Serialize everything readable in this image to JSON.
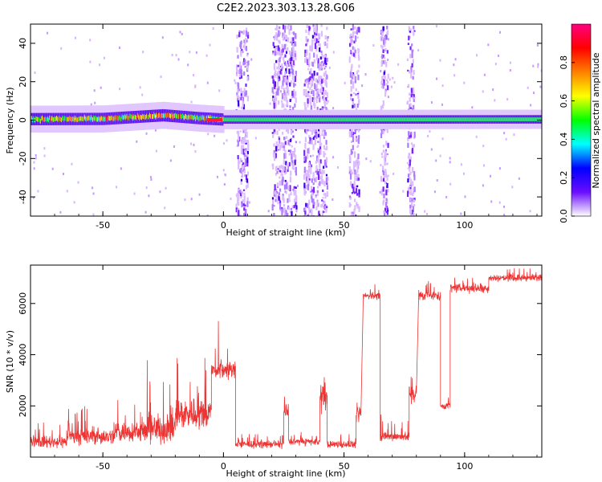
{
  "chart_data": [
    {
      "type": "heatmap",
      "title": "C2E2.2023.303.13.28.G06",
      "xlabel": "Height of straight line (km)",
      "ylabel": "Frequency (Hz)",
      "xlim": [
        -80,
        132
      ],
      "ylim": [
        -50,
        50
      ],
      "xticks": [
        -50,
        0,
        50,
        100
      ],
      "yticks": [
        -40,
        -20,
        0,
        20,
        40
      ],
      "colorbar": {
        "label": "Normalized spectral amplitude",
        "range": [
          0,
          1
        ],
        "ticks": [
          "0.0",
          "0.2",
          "0.4",
          "0.6",
          "0.8"
        ],
        "colors": [
          "#ffffff",
          "#6a0dff",
          "#0000ff",
          "#00ffff",
          "#00ff00",
          "#ffff00",
          "#ff8000",
          "#ff0000",
          "#ff0080"
        ]
      },
      "main_line": [
        {
          "x": -80,
          "y": 0.5
        },
        {
          "x": -50,
          "y": 0.6
        },
        {
          "x": -25,
          "y": 2.5
        },
        {
          "x": -10,
          "y": 1.0
        },
        {
          "x": 0,
          "y": 0.3
        },
        {
          "x": 50,
          "y": 0.3
        },
        {
          "x": 132,
          "y": 0.4
        }
      ],
      "noise_bands": [
        {
          "x_from": 5,
          "x_to": 10
        },
        {
          "x_from": 20,
          "x_to": 30
        },
        {
          "x_from": 33,
          "x_to": 43
        },
        {
          "x_from": 52,
          "x_to": 56
        },
        {
          "x_from": 65,
          "x_to": 68
        },
        {
          "x_from": 76,
          "x_to": 79
        }
      ]
    },
    {
      "type": "line",
      "title": "",
      "xlabel": "Height of straight line (km)",
      "ylabel": "SNR (10 * v/v)",
      "xlim": [
        -80,
        132
      ],
      "ylim": [
        0,
        7500
      ],
      "xticks": [
        -50,
        0,
        50,
        100
      ],
      "yticks": [
        2000,
        4000,
        6000
      ],
      "series": [
        {
          "color": "#ee3333",
          "segments": [
            {
              "x_from": -80,
              "x_to": -65,
              "base": 600,
              "noise": 350,
              "spike": 1400
            },
            {
              "x_from": -65,
              "x_to": -45,
              "base": 800,
              "noise": 450,
              "spike": 2000
            },
            {
              "x_from": -45,
              "x_to": -32,
              "base": 1000,
              "noise": 600,
              "spike": 2600
            },
            {
              "x_from": -32,
              "x_to": -20,
              "base": 1100,
              "noise": 800,
              "spike": 3800
            },
            {
              "x_from": -20,
              "x_to": -5,
              "base": 1700,
              "noise": 900,
              "spike": 4000
            },
            {
              "x_from": -5,
              "x_to": 5,
              "base": 3400,
              "noise": 500,
              "spike": 5600
            },
            {
              "x_from": 5,
              "x_to": 25,
              "base": 500,
              "noise": 200,
              "spike": 900
            },
            {
              "x_from": 25,
              "x_to": 27,
              "base": 1800,
              "noise": 500,
              "spike": 2400
            },
            {
              "x_from": 27,
              "x_to": 40,
              "base": 600,
              "noise": 200,
              "spike": 1000
            },
            {
              "x_from": 40,
              "x_to": 43,
              "base": 2300,
              "noise": 700,
              "spike": 3300
            },
            {
              "x_from": 43,
              "x_to": 55,
              "base": 500,
              "noise": 200,
              "spike": 900
            },
            {
              "x_from": 55,
              "x_to": 57,
              "base": 1600,
              "noise": 400,
              "spike": 2200
            },
            {
              "x_from": 58,
              "x_to": 65,
              "base": 6300,
              "noise": 200,
              "spike": 6900
            },
            {
              "x_from": 65,
              "x_to": 67,
              "base": 800,
              "noise": 300,
              "spike": 1800
            },
            {
              "x_from": 67,
              "x_to": 77,
              "base": 800,
              "noise": 250,
              "spike": 1500
            },
            {
              "x_from": 77,
              "x_to": 80,
              "base": 2500,
              "noise": 600,
              "spike": 3300
            },
            {
              "x_from": 81,
              "x_to": 90,
              "base": 6300,
              "noise": 250,
              "spike": 7000
            },
            {
              "x_from": 90,
              "x_to": 94,
              "base": 2000,
              "noise": 200,
              "spike": 2500
            },
            {
              "x_from": 94,
              "x_to": 110,
              "base": 6600,
              "noise": 250,
              "spike": 7200
            },
            {
              "x_from": 110,
              "x_to": 132,
              "base": 7000,
              "noise": 200,
              "spike": 7400
            }
          ]
        }
      ]
    }
  ]
}
